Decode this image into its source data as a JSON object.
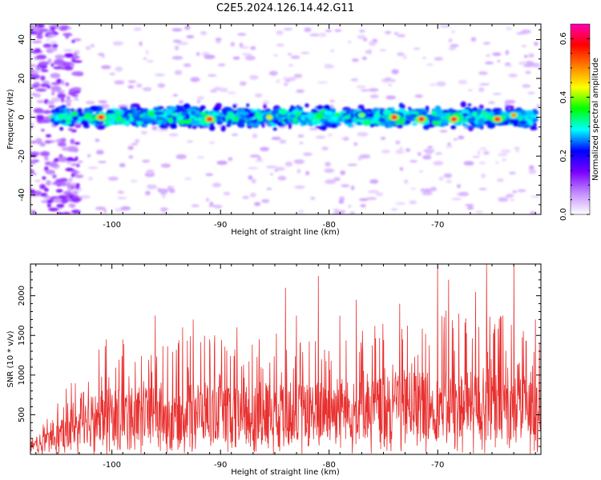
{
  "title": "C2E5.2024.126.14.42.G11",
  "colors": {
    "snr_line": "#e8302f",
    "axes": "#000000"
  },
  "chart_data": [
    {
      "type": "heatmap",
      "xlabel": "Height of straight line (km)",
      "ylabel": "Frequency (Hz)",
      "xlim": [
        -107.5,
        -60.5
      ],
      "ylim": [
        -50,
        48
      ],
      "xticks": [
        -100,
        -90,
        -80,
        -70
      ],
      "yticks": [
        -40,
        -20,
        0,
        20,
        40
      ],
      "band_center_hz": 0,
      "band_halfwidth_hz": 7,
      "colorbar": {
        "label": "Normalized spectral amplitude",
        "range": [
          0.0,
          0.65
        ],
        "ticks": [
          0.0,
          0.2,
          0.4,
          0.6
        ],
        "colormap": [
          "#ffffff",
          "#c38cff",
          "#7a00ff",
          "#0000ff",
          "#00ffff",
          "#00ff00",
          "#ffff00",
          "#ff8000",
          "#ff0000",
          "#ff00b4"
        ]
      },
      "peaks": [
        {
          "x": -101.0,
          "y": 0,
          "amp": 0.6
        },
        {
          "x": -91.0,
          "y": -1,
          "amp": 0.6
        },
        {
          "x": -74.0,
          "y": 0,
          "amp": 0.6
        },
        {
          "x": -71.5,
          "y": -1,
          "amp": 0.6
        },
        {
          "x": -68.5,
          "y": -1,
          "amp": 0.6
        },
        {
          "x": -64.5,
          "y": -1,
          "amp": 0.6
        },
        {
          "x": -63.0,
          "y": 1,
          "amp": 0.5
        },
        {
          "x": -85.5,
          "y": 0,
          "amp": 0.45
        },
        {
          "x": -77.0,
          "y": 1,
          "amp": 0.4
        }
      ]
    },
    {
      "type": "line",
      "xlabel": "Height of straight line (km)",
      "ylabel": "SNR (10 * v/v)",
      "xlim": [
        -107.5,
        -60.5
      ],
      "ylim": [
        0,
        2400
      ],
      "xticks": [
        -100,
        -90,
        -80,
        -70
      ],
      "yticks": [
        500,
        1000,
        1500,
        2000
      ],
      "series": [
        {
          "x": [
            -107.5,
            -106.0,
            -104.5,
            -103.0,
            -101.5,
            -100.0,
            -98.5,
            -97.0,
            -95.5,
            -94.0,
            -92.5,
            -91.0,
            -89.5,
            -88.0,
            -86.5,
            -85.0,
            -83.5,
            -82.0,
            -80.5,
            -79.0,
            -77.5,
            -76.0,
            -74.5,
            -73.0,
            -71.5,
            -70.0,
            -68.5,
            -67.0,
            -65.5,
            -64.0,
            -62.5,
            -61.0,
            -60.5
          ],
          "values": [
            150,
            200,
            350,
            500,
            600,
            650,
            650,
            650,
            650,
            650,
            700,
            700,
            650,
            650,
            700,
            700,
            700,
            700,
            720,
            720,
            720,
            750,
            750,
            800,
            800,
            800,
            850,
            800,
            800,
            800,
            750,
            700,
            700
          ],
          "peaks": [
            {
              "x": -100.5,
              "y": 1450
            },
            {
              "x": -99.0,
              "y": 1450
            },
            {
              "x": -96.0,
              "y": 1750
            },
            {
              "x": -93.5,
              "y": 1600
            },
            {
              "x": -92.5,
              "y": 1700
            },
            {
              "x": -91.0,
              "y": 1450
            },
            {
              "x": -88.5,
              "y": 1600
            },
            {
              "x": -84.0,
              "y": 2100
            },
            {
              "x": -83.0,
              "y": 1750
            },
            {
              "x": -81.0,
              "y": 2250
            },
            {
              "x": -79.0,
              "y": 1750
            },
            {
              "x": -77.5,
              "y": 1950
            },
            {
              "x": -73.5,
              "y": 1900
            },
            {
              "x": -70.0,
              "y": 2400
            },
            {
              "x": -69.0,
              "y": 2200
            },
            {
              "x": -66.5,
              "y": 2050
            },
            {
              "x": -65.5,
              "y": 2400
            },
            {
              "x": -64.0,
              "y": 1750
            },
            {
              "x": -63.0,
              "y": 2400
            },
            {
              "x": -61.0,
              "y": 1700
            }
          ]
        }
      ]
    }
  ]
}
